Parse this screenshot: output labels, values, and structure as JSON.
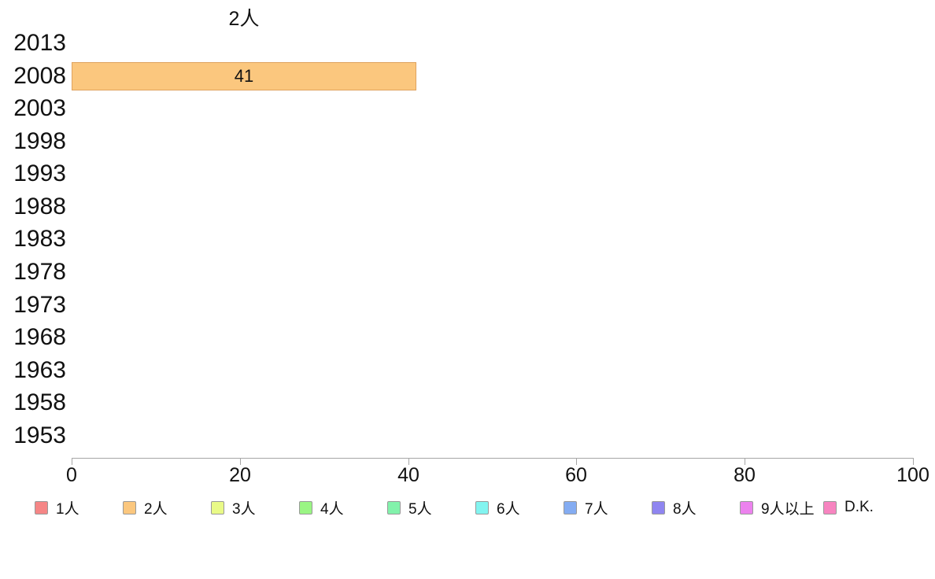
{
  "chart_data": {
    "type": "bar",
    "orientation": "horizontal",
    "title": "2人",
    "categories": [
      "2013",
      "2008",
      "2003",
      "1998",
      "1993",
      "1988",
      "1983",
      "1978",
      "1973",
      "1968",
      "1963",
      "1958",
      "1953"
    ],
    "series_shown": "2人",
    "values": [
      null,
      41,
      null,
      null,
      null,
      null,
      null,
      null,
      null,
      null,
      null,
      null,
      null
    ],
    "data_labels": [
      null,
      "41",
      null,
      null,
      null,
      null,
      null,
      null,
      null,
      null,
      null,
      null,
      null
    ],
    "xlabel": "",
    "ylabel": "",
    "xlim": [
      0,
      100
    ],
    "x_ticks": [
      "0",
      "20",
      "40",
      "60",
      "80",
      "100"
    ],
    "grid": false,
    "bar_color": "#fbc77e",
    "bar_border_color": "#dfa35f",
    "legend_position": "bottom",
    "legend": [
      {
        "label": "1人",
        "color": "#f58686"
      },
      {
        "label": "2人",
        "color": "#fbc77e"
      },
      {
        "label": "3人",
        "color": "#e9fa87"
      },
      {
        "label": "4人",
        "color": "#9af584"
      },
      {
        "label": "5人",
        "color": "#82f2ab"
      },
      {
        "label": "6人",
        "color": "#82f4f0"
      },
      {
        "label": "7人",
        "color": "#84acf2"
      },
      {
        "label": "8人",
        "color": "#8f85f0"
      },
      {
        "label": "9人以上",
        "color": "#ec82ee"
      },
      {
        "label": "D.K.",
        "color": "#f784c0"
      }
    ]
  },
  "colors": {
    "background": "#ffffff",
    "axis": "#a6a6a6",
    "text": "#111111",
    "legend_swatch_border": "#999999"
  }
}
